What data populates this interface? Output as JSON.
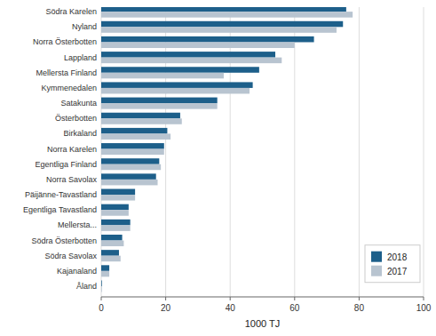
{
  "chart_data": {
    "type": "bar",
    "orientation": "horizontal",
    "categories": [
      "Åland",
      "Kajanaland",
      "Södra Savolax",
      "Södra Österbotten",
      "Mellersta...",
      "Egentliga Tavastland",
      "Päijänne-Tavastland",
      "Norra Savolax",
      "Egentliga Finland",
      "Norra Karelen",
      "Birkaland",
      "Österbotten",
      "Satakunta",
      "Kymmenedalen",
      "Mellersta Finland",
      "Lappland",
      "Norra Österbotten",
      "Nyland",
      "Södra Karelen"
    ],
    "series": [
      {
        "name": "2018",
        "color": "#1d5f8a",
        "values": [
          0.2,
          2.5,
          5.5,
          6.5,
          9.0,
          8.5,
          10.5,
          17.0,
          18.0,
          19.5,
          20.5,
          24.5,
          36.0,
          47.0,
          49.0,
          54.0,
          66.0,
          75.0,
          76.0
        ]
      },
      {
        "name": "2017",
        "color": "#b8c4d0",
        "values": [
          0.2,
          2.5,
          6.0,
          7.0,
          9.0,
          8.5,
          10.5,
          17.5,
          18.5,
          19.5,
          21.5,
          25.0,
          36.0,
          46.0,
          38.0,
          56.0,
          60.0,
          73.0,
          78.0
        ]
      }
    ],
    "xlabel": "1000 TJ",
    "xlim": [
      0,
      100
    ],
    "xticks": [
      0,
      20,
      40,
      60,
      80,
      100
    ],
    "grid": true,
    "legend": "lower right"
  }
}
